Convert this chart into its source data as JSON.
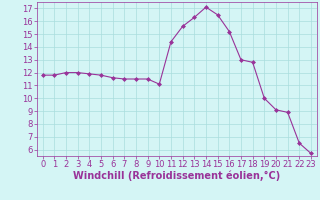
{
  "x": [
    0,
    1,
    2,
    3,
    4,
    5,
    6,
    7,
    8,
    9,
    10,
    11,
    12,
    13,
    14,
    15,
    16,
    17,
    18,
    19,
    20,
    21,
    22,
    23
  ],
  "y": [
    11.8,
    11.8,
    12.0,
    12.0,
    11.9,
    11.8,
    11.6,
    11.5,
    11.5,
    11.5,
    11.1,
    14.4,
    15.6,
    16.3,
    17.1,
    16.5,
    15.2,
    13.0,
    12.8,
    10.0,
    9.1,
    8.9,
    6.5,
    5.7
  ],
  "line_color": "#993399",
  "marker": "D",
  "marker_size": 2.0,
  "bg_color": "#d4f5f5",
  "grid_color": "#aadddd",
  "xlabel": "Windchill (Refroidissement éolien,°C)",
  "xlabel_color": "#993399",
  "ylim": [
    5.5,
    17.5
  ],
  "xlim": [
    -0.5,
    23.5
  ],
  "yticks": [
    6,
    7,
    8,
    9,
    10,
    11,
    12,
    13,
    14,
    15,
    16,
    17
  ],
  "xticks": [
    0,
    1,
    2,
    3,
    4,
    5,
    6,
    7,
    8,
    9,
    10,
    11,
    12,
    13,
    14,
    15,
    16,
    17,
    18,
    19,
    20,
    21,
    22,
    23
  ],
  "tick_color": "#993399",
  "tick_fontsize": 6,
  "xlabel_fontsize": 7
}
